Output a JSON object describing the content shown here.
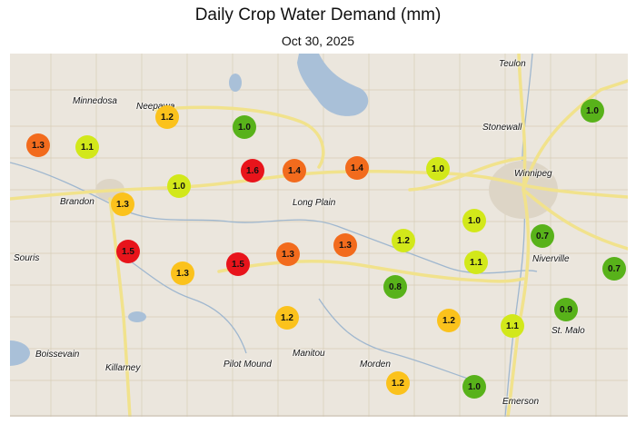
{
  "title": "Daily Crop Water Demand (mm)",
  "subtitle": "Oct 30, 2025",
  "colors": {
    "very_high": "#e8141b",
    "high": "#f26b1d",
    "moderate": "#fbc21c",
    "low": "#d2e81a",
    "very_low": "#58b21a",
    "map_land": "#ebe6dd",
    "water": "#a9c0d8",
    "highway": "#f1e28c"
  },
  "towns": [
    {
      "name": "Teulon"
    },
    {
      "name": "Minnedosa"
    },
    {
      "name": "Neepawa"
    },
    {
      "name": "Stonewall"
    },
    {
      "name": "Winnipeg"
    },
    {
      "name": "Brandon"
    },
    {
      "name": "Long Plain"
    },
    {
      "name": "Souris"
    },
    {
      "name": "Niverville"
    },
    {
      "name": "St. Malo"
    },
    {
      "name": "Boissevain"
    },
    {
      "name": "Manitou"
    },
    {
      "name": "Killarney"
    },
    {
      "name": "Pilot Mound"
    },
    {
      "name": "Morden"
    },
    {
      "name": "Emerson"
    }
  ],
  "stations": [
    {
      "value": "1.3",
      "level": "high"
    },
    {
      "value": "1.1",
      "level": "low"
    },
    {
      "value": "1.2",
      "level": "moderate"
    },
    {
      "value": "1.0",
      "level": "very_low"
    },
    {
      "value": "1.6",
      "level": "very_high"
    },
    {
      "value": "1.4",
      "level": "high"
    },
    {
      "value": "1.4",
      "level": "high"
    },
    {
      "value": "1.0",
      "level": "low"
    },
    {
      "value": "1.0",
      "level": "very_low"
    },
    {
      "value": "1.0",
      "level": "low"
    },
    {
      "value": "1.3",
      "level": "moderate"
    },
    {
      "value": "1.5",
      "level": "very_high"
    },
    {
      "value": "1.3",
      "level": "moderate"
    },
    {
      "value": "1.5",
      "level": "very_high"
    },
    {
      "value": "1.3",
      "level": "high"
    },
    {
      "value": "1.3",
      "level": "high"
    },
    {
      "value": "1.2",
      "level": "low"
    },
    {
      "value": "1.0",
      "level": "low"
    },
    {
      "value": "0.7",
      "level": "very_low"
    },
    {
      "value": "1.1",
      "level": "low"
    },
    {
      "value": "0.7",
      "level": "very_low"
    },
    {
      "value": "0.8",
      "level": "very_low"
    },
    {
      "value": "1.2",
      "level": "moderate"
    },
    {
      "value": "1.2",
      "level": "moderate"
    },
    {
      "value": "1.1",
      "level": "low"
    },
    {
      "value": "0.9",
      "level": "very_low"
    },
    {
      "value": "1.2",
      "level": "moderate"
    },
    {
      "value": "1.0",
      "level": "very_low"
    }
  ]
}
